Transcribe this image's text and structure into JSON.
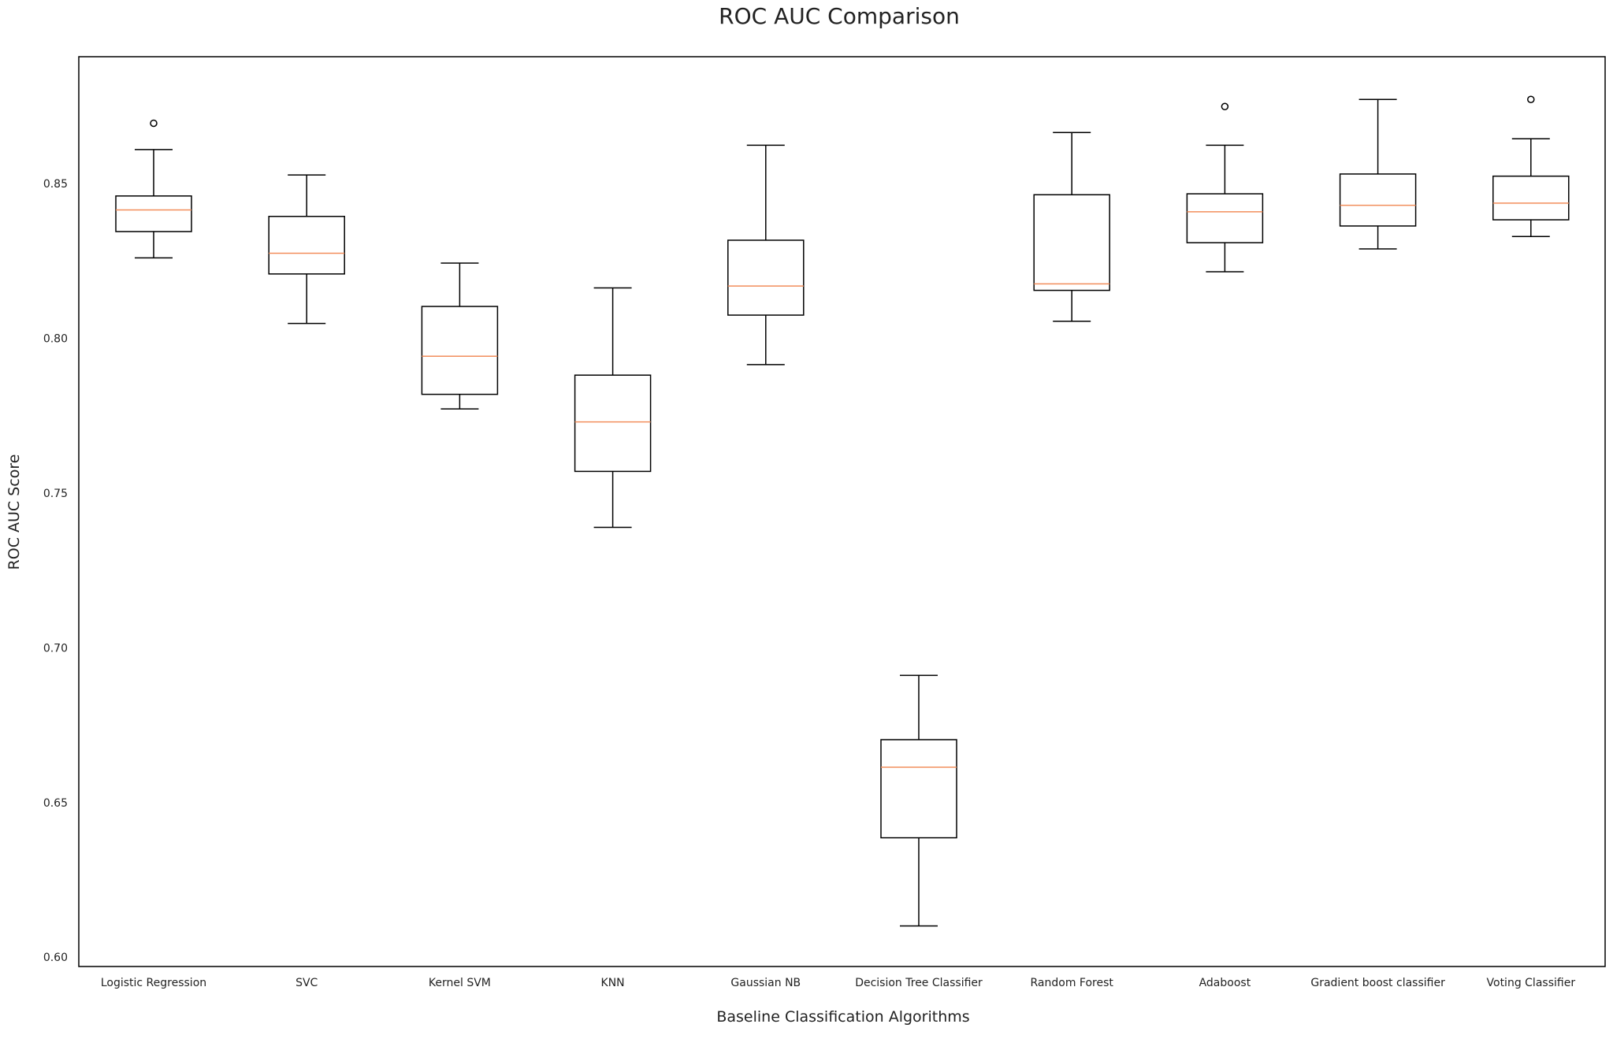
{
  "chart_data": {
    "type": "box",
    "title": "ROC AUC Comparison",
    "xlabel": "Baseline Classification Algorithms",
    "ylabel": "ROC AUC Score",
    "ylim": [
      0.597,
      0.891
    ],
    "yticks": [
      "0.60",
      "0.65",
      "0.70",
      "0.75",
      "0.80",
      "0.85"
    ],
    "ytick_values": [
      0.6,
      0.65,
      0.7,
      0.75,
      0.8,
      0.85
    ],
    "grid": false,
    "legend": "none",
    "colors": {
      "box_edge": "#000000",
      "median": "#f28e5b",
      "background": "#ffffff",
      "frame": "#000000"
    },
    "categories": [
      "Logistic Regression",
      "SVC",
      "Kernel SVM",
      "KNN",
      "Gaussian NB",
      "Decision Tree Classifier",
      "Random Forest",
      "Adaboost",
      "Gradient boost classifier",
      "Voting Classifier"
    ],
    "boxes": [
      {
        "label": "Logistic Regression",
        "whisker_low": 0.826,
        "q1": 0.8345,
        "median": 0.8415,
        "q3": 0.846,
        "whisker_high": 0.861,
        "outliers": [
          0.8695
        ]
      },
      {
        "label": "SVC",
        "whisker_low": 0.8048,
        "q1": 0.8208,
        "median": 0.8275,
        "q3": 0.8394,
        "whisker_high": 0.8528,
        "outliers": []
      },
      {
        "label": "Kernel SVM",
        "whisker_low": 0.7772,
        "q1": 0.7819,
        "median": 0.7942,
        "q3": 0.8103,
        "whisker_high": 0.8243,
        "outliers": []
      },
      {
        "label": "KNN",
        "whisker_low": 0.7389,
        "q1": 0.757,
        "median": 0.773,
        "q3": 0.7881,
        "whisker_high": 0.8163,
        "outliers": []
      },
      {
        "label": "Gaussian NB",
        "whisker_low": 0.7915,
        "q1": 0.8075,
        "median": 0.8169,
        "q3": 0.8317,
        "whisker_high": 0.8624,
        "outliers": []
      },
      {
        "label": "Decision Tree Classifier",
        "whisker_low": 0.6101,
        "q1": 0.6386,
        "median": 0.6614,
        "q3": 0.6703,
        "whisker_high": 0.6911,
        "outliers": []
      },
      {
        "label": "Random Forest",
        "whisker_low": 0.8055,
        "q1": 0.8155,
        "median": 0.8176,
        "q3": 0.8464,
        "whisker_high": 0.8665,
        "outliers": []
      },
      {
        "label": "Adaboost",
        "whisker_low": 0.8215,
        "q1": 0.8309,
        "median": 0.8409,
        "q3": 0.8467,
        "whisker_high": 0.8624,
        "outliers": [
          0.8749
        ]
      },
      {
        "label": "Gradient boost classifier",
        "whisker_low": 0.8289,
        "q1": 0.8363,
        "median": 0.843,
        "q3": 0.8531,
        "whisker_high": 0.8772,
        "outliers": []
      },
      {
        "label": "Voting Classifier",
        "whisker_low": 0.8329,
        "q1": 0.8383,
        "median": 0.8437,
        "q3": 0.8524,
        "whisker_high": 0.8645,
        "outliers": [
          0.8772
        ]
      }
    ]
  }
}
